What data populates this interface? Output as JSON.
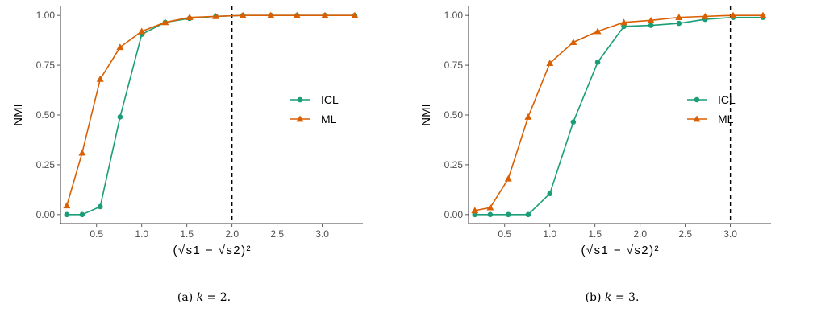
{
  "chart_data": [
    {
      "type": "line",
      "panel": "a",
      "caption": {
        "prefix": "(a) ",
        "math": "k",
        "suffix": " = 2."
      },
      "ylabel": "NMI",
      "xlabel": "(√s1 − √s2)²",
      "xlim": [
        0.1,
        3.45
      ],
      "ylim": [
        -0.045,
        1.045
      ],
      "xticks": [
        "0.5",
        "1.0",
        "1.5",
        "2.0",
        "2.5",
        "3.0"
      ],
      "yticks": [
        "0.00",
        "0.25",
        "0.50",
        "0.75",
        "1.00"
      ],
      "vline": 2.0,
      "legend_position": "right",
      "x": [
        0.17,
        0.34,
        0.54,
        0.76,
        1.0,
        1.26,
        1.53,
        1.82,
        2.12,
        2.43,
        2.72,
        3.03,
        3.36
      ],
      "series": [
        {
          "name": "ICL",
          "marker": "circle",
          "color": "#1b9e77",
          "values": [
            0.0,
            0.0,
            0.04,
            0.49,
            0.905,
            0.965,
            0.985,
            0.995,
            1.0,
            1.0,
            1.0,
            1.0,
            1.0
          ]
        },
        {
          "name": "ML",
          "marker": "triangle",
          "color": "#d95f02",
          "values": [
            0.045,
            0.31,
            0.68,
            0.84,
            0.92,
            0.965,
            0.99,
            0.995,
            1.0,
            1.0,
            1.0,
            1.0,
            1.0
          ]
        }
      ]
    },
    {
      "type": "line",
      "panel": "b",
      "caption": {
        "prefix": "(b) ",
        "math": "k",
        "suffix": " = 3."
      },
      "ylabel": "NMI",
      "xlabel": "(√s1 − √s2)²",
      "xlim": [
        0.1,
        3.45
      ],
      "ylim": [
        -0.045,
        1.045
      ],
      "xticks": [
        "0.5",
        "1.0",
        "1.5",
        "2.0",
        "2.5",
        "3.0"
      ],
      "yticks": [
        "0.00",
        "0.25",
        "0.50",
        "0.75",
        "1.00"
      ],
      "vline": 3.0,
      "legend_position": "center",
      "x": [
        0.17,
        0.34,
        0.54,
        0.76,
        1.0,
        1.26,
        1.53,
        1.82,
        2.12,
        2.43,
        2.72,
        3.03,
        3.36
      ],
      "series": [
        {
          "name": "ICL",
          "marker": "circle",
          "color": "#1b9e77",
          "values": [
            0.0,
            0.0,
            0.0,
            0.0,
            0.105,
            0.465,
            0.765,
            0.945,
            0.95,
            0.96,
            0.98,
            0.99,
            0.99
          ]
        },
        {
          "name": "ML",
          "marker": "triangle",
          "color": "#d95f02",
          "values": [
            0.02,
            0.035,
            0.18,
            0.49,
            0.76,
            0.865,
            0.92,
            0.965,
            0.975,
            0.99,
            0.995,
            1.0,
            1.0
          ]
        }
      ]
    }
  ]
}
